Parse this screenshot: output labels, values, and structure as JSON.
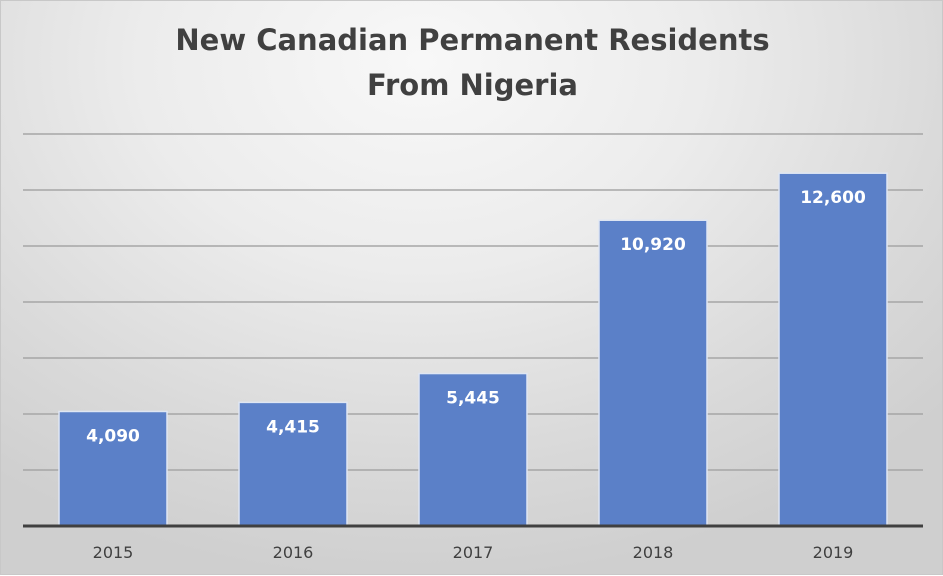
{
  "chart_data": {
    "type": "bar",
    "title": [
      "New Canadian Permanent Residents",
      "From Nigeria"
    ],
    "categories": [
      "2015",
      "2016",
      "2017",
      "2018",
      "2019"
    ],
    "values": [
      4090,
      4415,
      5445,
      10920,
      12600
    ],
    "data_labels": [
      "4,090",
      "4,415",
      "5,445",
      "10,920",
      "12,600"
    ],
    "xlabel": "",
    "ylabel": "",
    "ylim": [
      0,
      14000
    ],
    "ytick_step": 2000,
    "y_tick_labels_shown": false,
    "grid": true,
    "legend": "none",
    "colors": {
      "bar": "#5b80c8",
      "bar_border": "#dfe6f3",
      "grid": "#a6a6a6",
      "axis": "#404040",
      "label": "#ffffff",
      "title": "#404040"
    }
  }
}
